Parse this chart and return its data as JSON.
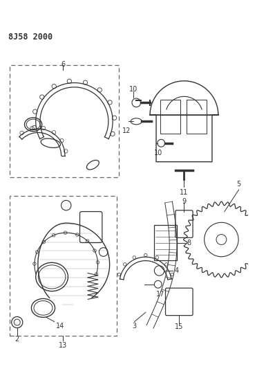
{
  "title": "8J58 2000",
  "bg_color": "#ffffff",
  "line_color": "#333333",
  "figsize": [
    3.98,
    5.33
  ],
  "dpi": 100
}
